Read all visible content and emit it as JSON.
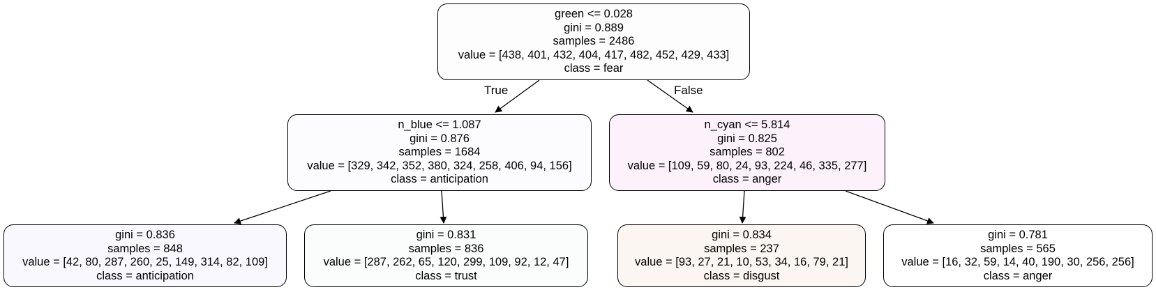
{
  "colors": {
    "node0": "#fdfdfd",
    "node1": "#fcfcff",
    "node2": "#fdf1fb",
    "node3": "#faf8ff",
    "node4": "#fafdfb",
    "node5": "#fcf6f2",
    "node6": "#ffffff",
    "edge": "#000000"
  },
  "edges": {
    "true_label": "True",
    "false_label": "False"
  },
  "nodes": [
    {
      "split": "green <= 0.028",
      "gini": "gini = 0.889",
      "samples": "samples = 2486",
      "value": "value = [438, 401, 432, 404, 417, 482, 452, 429, 433]",
      "class": "class = fear"
    },
    {
      "split": "n_blue <= 1.087",
      "gini": "gini = 0.876",
      "samples": "samples = 1684",
      "value": "value = [329, 342, 352, 380, 324, 258, 406, 94, 156]",
      "class": "class = anticipation"
    },
    {
      "split": "n_cyan <= 5.814",
      "gini": "gini = 0.825",
      "samples": "samples = 802",
      "value": "value = [109, 59, 80, 24, 93, 224, 46, 335, 277]",
      "class": "class = anger"
    },
    {
      "gini": "gini = 0.836",
      "samples": "samples = 848",
      "value": "value = [42, 80, 287, 260, 25, 149, 314, 82, 109]",
      "class": "class = anticipation"
    },
    {
      "gini": "gini = 0.831",
      "samples": "samples = 836",
      "value": "value = [287, 262, 65, 120, 299, 109, 92, 12, 47]",
      "class": "class = trust"
    },
    {
      "gini": "gini = 0.834",
      "samples": "samples = 237",
      "value": "value = [93, 27, 21, 10, 53, 34, 16, 79, 21]",
      "class": "class = disgust"
    },
    {
      "gini": "gini = 0.781",
      "samples": "samples = 565",
      "value": "value = [16, 32, 59, 14, 40, 190, 30, 256, 256]",
      "class": "class = anger"
    }
  ]
}
